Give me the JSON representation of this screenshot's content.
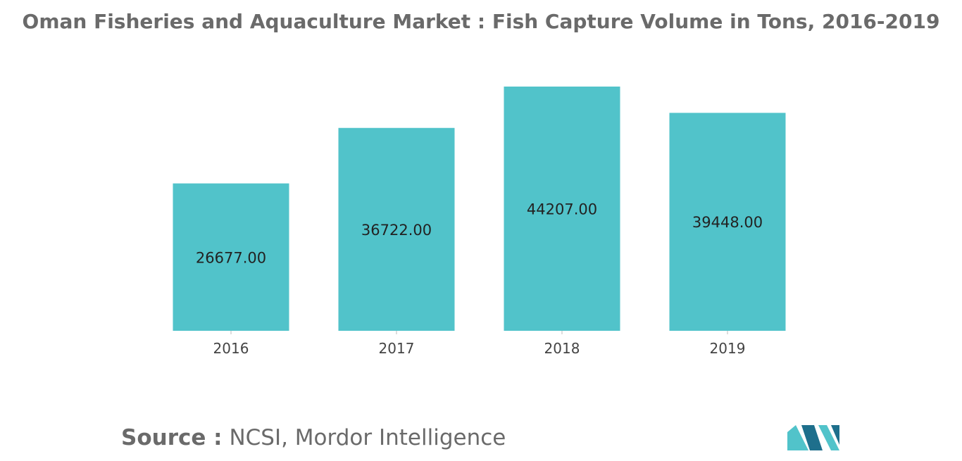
{
  "title": "Oman Fisheries and Aquaculture Market : Fish Capture Volume in Tons, 2016-2019",
  "source": {
    "label": "Source :",
    "text": "NCSI, Mordor Intelligence"
  },
  "colors": {
    "bar": "#51c3ca",
    "title": "#6a6a6a",
    "logo_dark": "#1e6f8c",
    "logo_light": "#51c3ca"
  },
  "logo_icon": "mordor-intelligence-logo-icon",
  "chart_data": {
    "type": "bar",
    "categories": [
      "2016",
      "2017",
      "2018",
      "2019"
    ],
    "values": [
      26677,
      36722,
      44207,
      39448
    ],
    "data_labels": [
      "26677.00",
      "36722.00",
      "44207.00",
      "39448.00"
    ],
    "xlabel": "",
    "ylabel": "",
    "ylim": [
      0,
      44207
    ],
    "grid": false,
    "legend": "none"
  }
}
